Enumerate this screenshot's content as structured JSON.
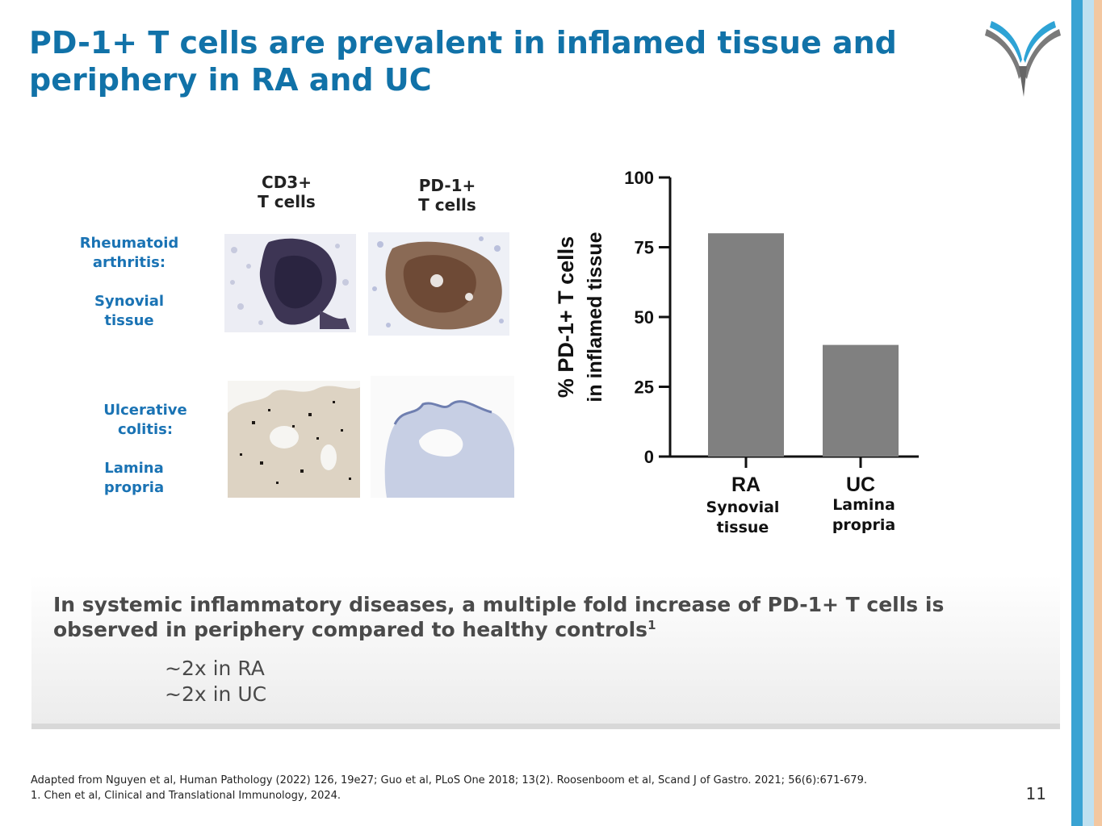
{
  "slide": {
    "title": "PD-1+ T cells are prevalent in inflamed tissue and periphery in RA and UC",
    "page_number": "11"
  },
  "images": {
    "col_headers": [
      "CD3+\nT cells",
      "PD-1+\nT cells"
    ],
    "rows": [
      {
        "disease": "Rheumatoid\narthritis:",
        "tissue": "Synovial\ntissue"
      },
      {
        "disease": "Ulcerative\ncolitis:",
        "tissue": "Lamina\npropria"
      }
    ]
  },
  "chart_data": {
    "type": "bar",
    "categories": [
      "RA",
      "UC"
    ],
    "category_sublabels": [
      "Synovial\ntissue",
      "Lamina\npropria"
    ],
    "values": [
      80,
      40
    ],
    "ylabel_line1": "%  PD-1+  T cells",
    "ylabel_line2": "in inflamed tissue",
    "ylim": [
      0,
      100
    ],
    "yticks": [
      0,
      25,
      50,
      75,
      100
    ],
    "bar_color": "#808080",
    "grid": false
  },
  "summary": {
    "heading": "In systemic inflammatory diseases, a multiple fold increase of PD-1+ T cells is observed in periphery compared to healthy controls",
    "heading_sup": "1",
    "items": [
      "~2x in RA",
      "~2x in UC"
    ]
  },
  "footnotes": {
    "line1": "Adapted from Nguyen et al, Human Pathology (2022) 126, 19e27; Guo et al, PLoS One 2018; 13(2). Roosenboom et al, Scand J of Gastro. 2021; 56(6):671-679.",
    "line2": "1. Chen et al, Clinical and Translational Immunology, 2024."
  },
  "colors": {
    "title": "#1172a8",
    "labels": "#1a73b4",
    "bar": "#808080",
    "stripe": "#3aa3d3"
  }
}
